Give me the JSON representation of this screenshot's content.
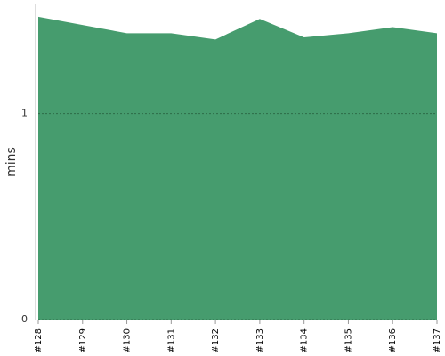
{
  "chart_data": {
    "type": "area",
    "ylabel": "mins",
    "categories": [
      "#128",
      "#129",
      "#130",
      "#131",
      "#132",
      "#133",
      "#134",
      "#135",
      "#136",
      "#137"
    ],
    "values": [
      1.47,
      1.43,
      1.39,
      1.39,
      1.36,
      1.46,
      1.37,
      1.39,
      1.42,
      1.39
    ],
    "color": "#469c6e",
    "ylim": [
      0,
      1.53
    ],
    "yticks": [
      0,
      1
    ],
    "grid": true
  }
}
